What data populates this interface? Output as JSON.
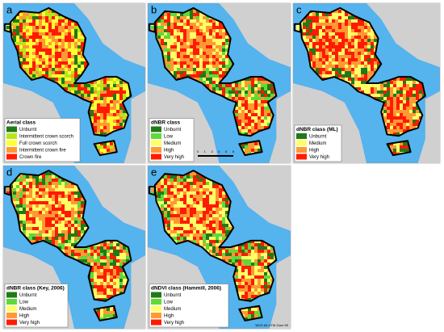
{
  "panels": [
    {
      "label": "a",
      "legend": {
        "title": "Aerial class",
        "items": [
          {
            "label": "Unburnt",
            "color": "#217a18"
          },
          {
            "label": "Intermittent crown scorch",
            "color": "#b8e619"
          },
          {
            "label": "Full crown scorch",
            "color": "#ffff33"
          },
          {
            "label": "Intermittent crown fire",
            "color": "#ff9933"
          },
          {
            "label": "Crown fire",
            "color": "#ff1a00"
          }
        ]
      }
    },
    {
      "label": "b",
      "legend": {
        "title": "dNBR class",
        "items": [
          {
            "label": "Unburnt",
            "color": "#217a18"
          },
          {
            "label": "Low",
            "color": "#5fd93a"
          },
          {
            "label": "Medium",
            "color": "#ffff66"
          },
          {
            "label": "High",
            "color": "#ff9933"
          },
          {
            "label": "Very high",
            "color": "#ff1a00"
          }
        ]
      },
      "scale_bar": [
        "0",
        "1",
        "2",
        "4",
        "6",
        "8"
      ]
    },
    {
      "label": "c",
      "legend": {
        "title": "dNBR class (ML)",
        "items": [
          {
            "label": "Unburnt",
            "color": "#217a18"
          },
          {
            "label": "Medium",
            "color": "#ffff66"
          },
          {
            "label": "High",
            "color": "#ff9933"
          },
          {
            "label": "Very high",
            "color": "#ff1a00"
          }
        ]
      }
    },
    {
      "label": "d",
      "legend": {
        "title": "dNBR class (Key, 2006)",
        "items": [
          {
            "label": "Unburnt",
            "color": "#217a18"
          },
          {
            "label": "Low",
            "color": "#5fd93a"
          },
          {
            "label": "Medium",
            "color": "#ffff66"
          },
          {
            "label": "High",
            "color": "#ff9933"
          },
          {
            "label": "Very high",
            "color": "#ff1a00"
          }
        ]
      }
    },
    {
      "label": "e",
      "legend": {
        "title": "dNDVI class (Hammill, 2006)",
        "items": [
          {
            "label": "Unburnt",
            "color": "#217a18"
          },
          {
            "label": "Low",
            "color": "#5fd93a"
          },
          {
            "label": "Medium",
            "color": "#ffff66"
          },
          {
            "label": "High",
            "color": "#ff9933"
          },
          {
            "label": "Very high",
            "color": "#ff1a00"
          }
        ]
      },
      "note": "WGS 84 UTM Zone 55"
    }
  ]
}
